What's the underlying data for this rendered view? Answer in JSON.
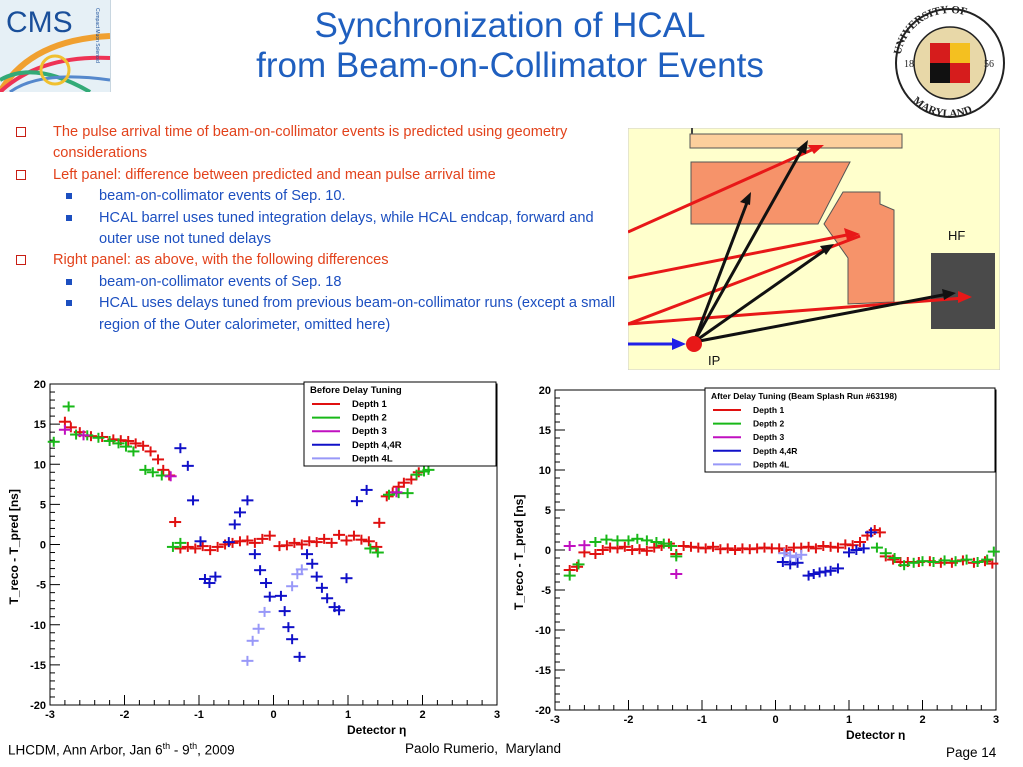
{
  "slide": {
    "title_line1": "Synchronization of HCAL",
    "title_line2": "from Beam-on-Collimator Events",
    "cms_logo_text": "CMS",
    "cms_logo_caption": "Compact Muon Solenoid",
    "umd_logo_top": "UNIVERSITY OF",
    "umd_logo_bottom": "MARYLAND",
    "umd_logo_year_left": "18",
    "umd_logo_year_right": "56",
    "bullets": [
      {
        "level": 1,
        "text": "The pulse arrival time of beam-on-collimator events is predicted using geometry considerations"
      },
      {
        "level": 1,
        "text": " Left panel: difference between predicted and mean pulse arrival time"
      },
      {
        "level": 2,
        "text": "beam-on-collimator events of Sep. 10."
      },
      {
        "level": 2,
        "text": "HCAL barrel uses tuned integration delays, while HCAL endcap, forward and outer use not tuned delays"
      },
      {
        "level": 1,
        "text": "Right panel: as above, with the following differences"
      },
      {
        "level": 2,
        "text": "beam-on-collimator events of Sep. 18"
      },
      {
        "level": 2,
        "text": " HCAL uses delays tuned from previous beam-on-collimator runs (except a small region of the Outer calorimeter, omitted here)"
      }
    ],
    "diagram": {
      "hf_label": "HF",
      "ip_label": "IP"
    },
    "footer_left": "LHCDM, Ann Arbor, Jan 6",
    "footer_left_sup1": "th",
    "footer_left_mid": " - 9",
    "footer_left_sup2": "th",
    "footer_left_end": ", 2009",
    "footer_mid": "Paolo Rumerio,  Maryland",
    "footer_right": "Page 14"
  },
  "chart_data": [
    {
      "type": "scatter",
      "title": "Before Delay Tuning",
      "xlabel": "Detector η",
      "ylabel": "T_reco - T_pred [ns]",
      "xlim": [
        -3,
        3
      ],
      "ylim": [
        -20,
        20
      ],
      "xticks": [
        -3,
        -2,
        -1,
        0,
        1,
        2,
        3
      ],
      "yticks": [
        20,
        15,
        10,
        5,
        0,
        -5,
        -10,
        -15,
        -20
      ],
      "legend_position": "top-right",
      "series": [
        {
          "name": "Depth 1",
          "color": "#e01010",
          "points": [
            [
              -2.8,
              15.3
            ],
            [
              -2.72,
              14.6
            ],
            [
              -2.6,
              14.0
            ],
            [
              -2.45,
              13.5
            ],
            [
              -2.3,
              13.4
            ],
            [
              -2.15,
              13.1
            ],
            [
              -2.05,
              13.0
            ],
            [
              -1.95,
              12.9
            ],
            [
              -1.85,
              12.6
            ],
            [
              -1.75,
              12.3
            ],
            [
              -1.65,
              11.6
            ],
            [
              -1.55,
              10.6
            ],
            [
              -1.48,
              9.3
            ],
            [
              -1.4,
              8.6
            ],
            [
              -1.32,
              2.8
            ],
            [
              -1.25,
              -0.5
            ],
            [
              -1.15,
              -0.3
            ],
            [
              -1.05,
              -0.5
            ],
            [
              -0.95,
              -0.2
            ],
            [
              -0.85,
              -0.7
            ],
            [
              -0.75,
              -0.3
            ],
            [
              -0.65,
              0.0
            ],
            [
              -0.55,
              0.2
            ],
            [
              -0.45,
              0.4
            ],
            [
              -0.35,
              0.5
            ],
            [
              -0.25,
              0.2
            ],
            [
              -0.15,
              0.7
            ],
            [
              -0.05,
              1.1
            ],
            [
              0.08,
              -0.2
            ],
            [
              0.18,
              -0.1
            ],
            [
              0.28,
              0.2
            ],
            [
              0.38,
              0.0
            ],
            [
              0.48,
              0.4
            ],
            [
              0.58,
              0.3
            ],
            [
              0.68,
              0.7
            ],
            [
              0.78,
              0.2
            ],
            [
              0.88,
              1.2
            ],
            [
              0.98,
              0.5
            ],
            [
              1.08,
              1.1
            ],
            [
              1.18,
              0.6
            ],
            [
              1.28,
              0.4
            ],
            [
              1.38,
              -0.3
            ],
            [
              1.42,
              2.7
            ],
            [
              1.52,
              6.0
            ],
            [
              1.6,
              6.5
            ],
            [
              1.68,
              7.2
            ],
            [
              1.75,
              7.7
            ],
            [
              1.85,
              8.1
            ],
            [
              1.95,
              9.0
            ]
          ]
        },
        {
          "name": "Depth 2",
          "color": "#18b818",
          "points": [
            [
              -2.95,
              12.8
            ],
            [
              -2.75,
              17.2
            ],
            [
              -2.65,
              13.7
            ],
            [
              -2.5,
              13.6
            ],
            [
              -2.35,
              13.3
            ],
            [
              -2.2,
              12.9
            ],
            [
              -2.08,
              12.6
            ],
            [
              -1.98,
              12.2
            ],
            [
              -1.88,
              11.6
            ],
            [
              -1.72,
              9.3
            ],
            [
              -1.62,
              9.0
            ],
            [
              -1.5,
              8.6
            ],
            [
              -1.35,
              -0.3
            ],
            [
              -1.25,
              0.2
            ],
            [
              1.3,
              -0.5
            ],
            [
              1.4,
              -1.0
            ],
            [
              1.55,
              6.2
            ],
            [
              1.68,
              6.4
            ],
            [
              1.8,
              6.4
            ],
            [
              1.92,
              8.7
            ],
            [
              2.02,
              9.1
            ],
            [
              2.08,
              9.3
            ]
          ]
        },
        {
          "name": "Depth 3",
          "color": "#c010c0",
          "points": [
            [
              -2.8,
              14.3
            ],
            [
              -2.55,
              13.6
            ],
            [
              -1.38,
              8.5
            ],
            [
              1.65,
              6.5
            ]
          ]
        },
        {
          "name": "Depth 4,4R",
          "color": "#1010c8",
          "points": [
            [
              -1.25,
              12.0
            ],
            [
              -1.15,
              9.8
            ],
            [
              -1.08,
              5.5
            ],
            [
              -0.98,
              0.4
            ],
            [
              -0.92,
              -4.3
            ],
            [
              -0.86,
              -4.8
            ],
            [
              -0.78,
              -4.0
            ],
            [
              -0.6,
              0.3
            ],
            [
              -0.52,
              2.5
            ],
            [
              -0.45,
              4.0
            ],
            [
              -0.35,
              5.5
            ],
            [
              -0.25,
              -1.2
            ],
            [
              -0.18,
              -3.2
            ],
            [
              -0.1,
              -4.8
            ],
            [
              -0.05,
              -6.5
            ],
            [
              0.1,
              -6.4
            ],
            [
              0.15,
              -8.3
            ],
            [
              0.2,
              -10.3
            ],
            [
              0.25,
              -11.8
            ],
            [
              0.35,
              -14.0
            ],
            [
              0.45,
              -1.2
            ],
            [
              0.52,
              -2.4
            ],
            [
              0.58,
              -4.0
            ],
            [
              0.65,
              -5.4
            ],
            [
              0.72,
              -6.7
            ],
            [
              0.82,
              -7.8
            ],
            [
              0.88,
              -8.2
            ],
            [
              0.98,
              -4.2
            ],
            [
              1.12,
              5.4
            ],
            [
              1.25,
              6.8
            ]
          ]
        },
        {
          "name": "Depth 4L",
          "color": "#9898f8",
          "points": [
            [
              -0.35,
              -14.5
            ],
            [
              -0.28,
              -12.0
            ],
            [
              -0.2,
              -10.5
            ],
            [
              -0.12,
              -8.4
            ],
            [
              0.25,
              -5.2
            ],
            [
              0.32,
              -3.7
            ],
            [
              0.38,
              -3.1
            ]
          ]
        }
      ]
    },
    {
      "type": "scatter",
      "title": "After Delay Tuning  (Beam Splash Run #63198)",
      "xlabel": "Detector η",
      "ylabel": "T_reco - T_pred [ns]",
      "xlim": [
        -3,
        3
      ],
      "ylim": [
        -20,
        20
      ],
      "xticks": [
        -3,
        -2,
        -1,
        0,
        1,
        2,
        3
      ],
      "yticks": [
        20,
        15,
        10,
        5,
        0,
        -5,
        -10,
        -15,
        -20
      ],
      "legend_position": "top-right",
      "series": [
        {
          "name": "Depth 1",
          "color": "#e01010",
          "points": [
            [
              -2.8,
              -2.5
            ],
            [
              -2.7,
              -2.1
            ],
            [
              -2.6,
              -0.3
            ],
            [
              -2.45,
              -0.5
            ],
            [
              -2.35,
              0.0
            ],
            [
              -2.25,
              0.3
            ],
            [
              -2.15,
              0.2
            ],
            [
              -2.05,
              0.4
            ],
            [
              -1.95,
              0.0
            ],
            [
              -1.85,
              0.1
            ],
            [
              -1.75,
              -0.1
            ],
            [
              -1.65,
              0.3
            ],
            [
              -1.55,
              0.5
            ],
            [
              -1.45,
              0.8
            ],
            [
              -1.35,
              -0.5
            ],
            [
              -1.25,
              0.5
            ],
            [
              -1.15,
              0.4
            ],
            [
              -1.05,
              0.3
            ],
            [
              -0.95,
              0.2
            ],
            [
              -0.85,
              0.4
            ],
            [
              -0.75,
              0.1
            ],
            [
              -0.65,
              0.2
            ],
            [
              -0.55,
              0.0
            ],
            [
              -0.45,
              0.2
            ],
            [
              -0.35,
              0.1
            ],
            [
              -0.25,
              0.2
            ],
            [
              -0.15,
              0.3
            ],
            [
              -0.05,
              0.2
            ],
            [
              0.05,
              0.2
            ],
            [
              0.15,
              0.0
            ],
            [
              0.25,
              0.3
            ],
            [
              0.35,
              0.3
            ],
            [
              0.45,
              0.4
            ],
            [
              0.55,
              0.2
            ],
            [
              0.65,
              0.5
            ],
            [
              0.75,
              0.4
            ],
            [
              0.85,
              0.3
            ],
            [
              0.95,
              0.7
            ],
            [
              1.05,
              0.6
            ],
            [
              1.15,
              1.0
            ],
            [
              1.25,
              1.8
            ],
            [
              1.35,
              2.5
            ],
            [
              1.42,
              2.2
            ],
            [
              1.5,
              -0.8
            ],
            [
              1.6,
              -1.2
            ],
            [
              1.7,
              -1.5
            ],
            [
              1.8,
              -1.5
            ],
            [
              1.95,
              -1.5
            ],
            [
              2.1,
              -1.4
            ],
            [
              2.25,
              -1.6
            ],
            [
              2.4,
              -1.6
            ],
            [
              2.55,
              -1.3
            ],
            [
              2.7,
              -1.6
            ],
            [
              2.85,
              -1.4
            ],
            [
              2.95,
              -1.7
            ]
          ]
        },
        {
          "name": "Depth 2",
          "color": "#18b818",
          "points": [
            [
              -2.8,
              -3.2
            ],
            [
              -2.68,
              -1.8
            ],
            [
              -2.45,
              1.0
            ],
            [
              -2.3,
              1.3
            ],
            [
              -2.15,
              1.2
            ],
            [
              -2.0,
              1.2
            ],
            [
              -1.88,
              1.4
            ],
            [
              -1.75,
              1.2
            ],
            [
              -1.62,
              1.0
            ],
            [
              -1.52,
              0.8
            ],
            [
              -1.42,
              0.5
            ],
            [
              -1.35,
              -0.8
            ],
            [
              1.38,
              0.3
            ],
            [
              1.5,
              -0.4
            ],
            [
              1.62,
              -1.0
            ],
            [
              1.75,
              -1.9
            ],
            [
              1.88,
              -1.6
            ],
            [
              2.0,
              -1.4
            ],
            [
              2.15,
              -1.5
            ],
            [
              2.3,
              -1.3
            ],
            [
              2.45,
              -1.4
            ],
            [
              2.6,
              -1.2
            ],
            [
              2.75,
              -1.5
            ],
            [
              2.88,
              -1.2
            ],
            [
              2.97,
              -0.2
            ]
          ]
        },
        {
          "name": "Depth 3",
          "color": "#c010c0",
          "points": [
            [
              -2.8,
              0.5
            ],
            [
              -2.6,
              0.6
            ],
            [
              -1.35,
              -3.0
            ]
          ]
        },
        {
          "name": "Depth 4,4R",
          "color": "#1010c8",
          "points": [
            [
              0.1,
              -1.5
            ],
            [
              0.2,
              -1.8
            ],
            [
              0.3,
              -1.6
            ],
            [
              0.45,
              -3.2
            ],
            [
              0.52,
              -3.0
            ],
            [
              0.6,
              -2.8
            ],
            [
              0.68,
              -2.7
            ],
            [
              0.75,
              -2.6
            ],
            [
              0.85,
              -2.3
            ],
            [
              1.0,
              -0.3
            ],
            [
              1.1,
              0.0
            ],
            [
              1.2,
              0.2
            ],
            [
              1.3,
              2.2
            ]
          ]
        },
        {
          "name": "Depth 4L",
          "color": "#9898f8",
          "points": [
            [
              0.12,
              -0.4
            ],
            [
              0.2,
              -0.7
            ],
            [
              0.28,
              -0.9
            ],
            [
              0.35,
              -0.6
            ]
          ]
        }
      ]
    }
  ]
}
